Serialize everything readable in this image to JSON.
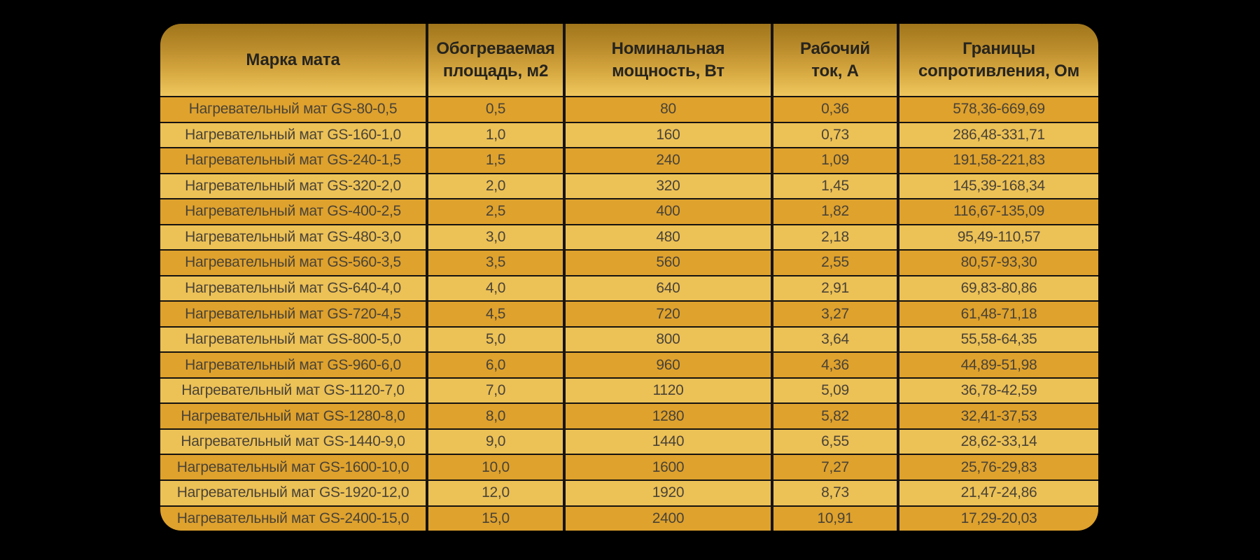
{
  "table": {
    "columns": [
      "Марка мата",
      "Обогреваемая площадь, м2",
      "Номинальная мощность, Вт",
      "Рабочий ток, А",
      "Границы сопротивления, Ом"
    ],
    "rows": [
      [
        "Нагревательный мат GS-80-0,5",
        "0,5",
        "80",
        "0,36",
        "578,36-669,69"
      ],
      [
        "Нагревательный мат GS-160-1,0",
        "1,0",
        "160",
        "0,73",
        "286,48-331,71"
      ],
      [
        "Нагревательный мат GS-240-1,5",
        "1,5",
        "240",
        "1,09",
        "191,58-221,83"
      ],
      [
        "Нагревательный мат GS-320-2,0",
        "2,0",
        "320",
        "1,45",
        "145,39-168,34"
      ],
      [
        "Нагревательный мат GS-400-2,5",
        "2,5",
        "400",
        "1,82",
        "116,67-135,09"
      ],
      [
        "Нагревательный мат GS-480-3,0",
        "3,0",
        "480",
        "2,18",
        "95,49-110,57"
      ],
      [
        "Нагревательный мат GS-560-3,5",
        "3,5",
        "560",
        "2,55",
        "80,57-93,30"
      ],
      [
        "Нагревательный мат GS-640-4,0",
        "4,0",
        "640",
        "2,91",
        "69,83-80,86"
      ],
      [
        "Нагревательный мат GS-720-4,5",
        "4,5",
        "720",
        "3,27",
        "61,48-71,18"
      ],
      [
        "Нагревательный мат GS-800-5,0",
        "5,0",
        "800",
        "3,64",
        "55,58-64,35"
      ],
      [
        "Нагревательный мат GS-960-6,0",
        "6,0",
        "960",
        "4,36",
        "44,89-51,98"
      ],
      [
        "Нагревательный мат GS-1120-7,0",
        "7,0",
        "1120",
        "5,09",
        "36,78-42,59"
      ],
      [
        "Нагревательный мат GS-1280-8,0",
        "8,0",
        "1280",
        "5,82",
        "32,41-37,53"
      ],
      [
        "Нагревательный мат GS-1440-9,0",
        "9,0",
        "1440",
        "6,55",
        "28,62-33,14"
      ],
      [
        "Нагревательный мат GS-1600-10,0",
        "10,0",
        "1600",
        "7,27",
        "25,76-29,83"
      ],
      [
        "Нагревательный мат GS-1920-12,0",
        "12,0",
        "1920",
        "8,73",
        "21,47-24,86"
      ],
      [
        "Нагревательный мат GS-2400-15,0",
        "15,0",
        "2400",
        "10,91",
        "17,29-20,03"
      ]
    ]
  },
  "colors": {
    "background": "#000000",
    "header_gradient_top": "#a0751b",
    "header_gradient_bottom": "#efc75e",
    "row_odd": "#dfa22d",
    "row_even": "#ecc156",
    "grid_line": "#161310",
    "header_text": "#26241f",
    "cell_text": "#4a4336"
  }
}
